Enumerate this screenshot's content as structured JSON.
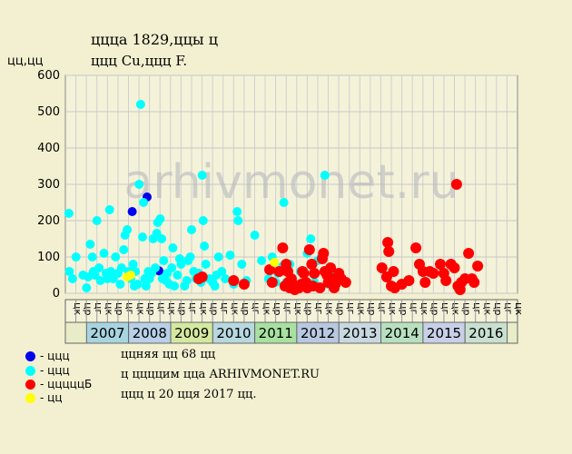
{
  "header": {
    "title_line1": "ццца 1829,ццы ц",
    "title_line2": "ццц Cu,ццц F."
  },
  "watermark": "arhivmonet.ru",
  "legend": [
    {
      "label": "- ццц",
      "color": "#0000ee"
    },
    {
      "label": "- ццц",
      "color": "#00ffff"
    },
    {
      "label": "- цццццБ",
      "color": "#ff0000"
    },
    {
      "label": "- цц",
      "color": "#ffff00"
    }
  ],
  "notes": [
    "ццняя цц 68 цц",
    "ц ццццим цца ARHIVMONET.RU",
    "ццц ц 20 цця 2017 цц."
  ],
  "chart_data": {
    "type": "scatter",
    "ylabel": "цц,цц",
    "ylim": [
      0,
      600
    ],
    "yticks": [
      0,
      100,
      200,
      300,
      400,
      500,
      600
    ],
    "grid": true,
    "x_axis_kind": "date",
    "x_start": "2006-07-01",
    "x_end": "2017-04-01",
    "half_year_labels": [
      "цк",
      "цр",
      "цг",
      "цк",
      "цр",
      "цг",
      "цк",
      "цр",
      "цг",
      "цк",
      "цр",
      "цг",
      "цк",
      "цр",
      "цг",
      "цк",
      "цр",
      "цг",
      "цк",
      "цр",
      "цг",
      "цк",
      "цр",
      "цг",
      "цк",
      "цр",
      "цг",
      "цк",
      "цр",
      "цг",
      "цк",
      "цр",
      "цг",
      "цк",
      "цр",
      "цг",
      "цк",
      "цр",
      "цг",
      "цк",
      "цр",
      "цг",
      "цк"
    ],
    "years": [
      {
        "label": "2007",
        "start": "2007-01-01",
        "end": "2008-01-01",
        "color": "#a8d4e0"
      },
      {
        "label": "2008",
        "start": "2008-01-01",
        "end": "2009-01-01",
        "color": "#b8d0e8"
      },
      {
        "label": "2009",
        "start": "2009-01-01",
        "end": "2010-01-01",
        "color": "#d4e8a0"
      },
      {
        "label": "2010",
        "start": "2010-01-01",
        "end": "2011-01-01",
        "color": "#b8d8e0"
      },
      {
        "label": "2011",
        "start": "2011-01-01",
        "end": "2012-01-01",
        "color": "#a8e0a0"
      },
      {
        "label": "2012",
        "start": "2012-01-01",
        "end": "2013-01-01",
        "color": "#b8c8e0"
      },
      {
        "label": "2013",
        "start": "2013-01-01",
        "end": "2014-01-01",
        "color": "#c8d8e0"
      },
      {
        "label": "2014",
        "start": "2014-01-01",
        "end": "2015-01-01",
        "color": "#b8e0c0"
      },
      {
        "label": "2015",
        "start": "2015-01-01",
        "end": "2016-01-01",
        "color": "#c8d0e8"
      },
      {
        "label": "2016",
        "start": "2016-01-01",
        "end": "2017-01-01",
        "color": "#c8e0d0"
      }
    ],
    "series": [
      {
        "name": "ццц",
        "color": "#0000ee",
        "points": [
          [
            "2008-02-01",
            225
          ],
          [
            "2008-06-10",
            265
          ],
          [
            "2008-09-20",
            62
          ]
        ]
      },
      {
        "name": "ццц",
        "color": "#00ffff",
        "points": [
          [
            "2006-08-01",
            220
          ],
          [
            "2006-08-05",
            60
          ],
          [
            "2006-09-01",
            40
          ],
          [
            "2006-10-01",
            100
          ],
          [
            "2006-12-01",
            50
          ],
          [
            "2007-01-01",
            15
          ],
          [
            "2007-01-15",
            45
          ],
          [
            "2007-02-01",
            135
          ],
          [
            "2007-02-20",
            100
          ],
          [
            "2007-03-01",
            60
          ],
          [
            "2007-03-15",
            50
          ],
          [
            "2007-04-01",
            200
          ],
          [
            "2007-04-20",
            70
          ],
          [
            "2007-05-01",
            35
          ],
          [
            "2007-06-01",
            110
          ],
          [
            "2007-06-20",
            55
          ],
          [
            "2007-07-01",
            40
          ],
          [
            "2007-07-20",
            230
          ],
          [
            "2007-08-01",
            60
          ],
          [
            "2007-08-20",
            40
          ],
          [
            "2007-09-10",
            100
          ],
          [
            "2007-10-01",
            55
          ],
          [
            "2007-10-20",
            25
          ],
          [
            "2007-11-01",
            70
          ],
          [
            "2007-11-20",
            120
          ],
          [
            "2007-12-01",
            160
          ],
          [
            "2007-12-20",
            175
          ],
          [
            "2008-01-01",
            60
          ],
          [
            "2008-01-20",
            40
          ],
          [
            "2008-02-10",
            80
          ],
          [
            "2008-02-20",
            20
          ],
          [
            "2008-03-01",
            60
          ],
          [
            "2008-03-20",
            25
          ],
          [
            "2008-04-01",
            300
          ],
          [
            "2008-04-15",
            520
          ],
          [
            "2008-05-01",
            155
          ],
          [
            "2008-05-10",
            250
          ],
          [
            "2008-05-20",
            40
          ],
          [
            "2008-06-01",
            20
          ],
          [
            "2008-06-20",
            60
          ],
          [
            "2008-07-01",
            40
          ],
          [
            "2008-07-20",
            55
          ],
          [
            "2008-08-01",
            150
          ],
          [
            "2008-08-20",
            70
          ],
          [
            "2008-09-01",
            165
          ],
          [
            "2008-09-10",
            195
          ],
          [
            "2008-10-01",
            205
          ],
          [
            "2008-10-15",
            150
          ],
          [
            "2008-10-20",
            40
          ],
          [
            "2008-11-01",
            90
          ],
          [
            "2008-11-20",
            35
          ],
          [
            "2008-12-01",
            55
          ],
          [
            "2008-12-20",
            25
          ],
          [
            "2009-01-10",
            70
          ],
          [
            "2009-01-20",
            125
          ],
          [
            "2009-02-01",
            20
          ],
          [
            "2009-03-01",
            50
          ],
          [
            "2009-03-20",
            95
          ],
          [
            "2009-04-01",
            80
          ],
          [
            "2009-05-01",
            20
          ],
          [
            "2009-05-20",
            35
          ],
          [
            "2009-06-01",
            90
          ],
          [
            "2009-06-20",
            100
          ],
          [
            "2009-07-01",
            175
          ],
          [
            "2009-07-20",
            60
          ],
          [
            "2009-08-10",
            40
          ],
          [
            "2009-09-01",
            55
          ],
          [
            "2009-09-20",
            30
          ],
          [
            "2009-10-01",
            325
          ],
          [
            "2009-10-10",
            200
          ],
          [
            "2009-10-20",
            130
          ],
          [
            "2009-11-01",
            80
          ],
          [
            "2009-12-01",
            40
          ],
          [
            "2010-01-01",
            30
          ],
          [
            "2010-01-20",
            20
          ],
          [
            "2010-02-01",
            50
          ],
          [
            "2010-02-20",
            100
          ],
          [
            "2010-03-20",
            60
          ],
          [
            "2010-04-20",
            40
          ],
          [
            "2010-06-01",
            105
          ],
          [
            "2010-07-01",
            25
          ],
          [
            "2010-08-01",
            225
          ],
          [
            "2010-08-10",
            200
          ],
          [
            "2010-09-10",
            80
          ],
          [
            "2010-10-20",
            35
          ],
          [
            "2011-01-01",
            160
          ],
          [
            "2011-03-01",
            90
          ],
          [
            "2011-05-01",
            40
          ],
          [
            "2011-06-01",
            100
          ],
          [
            "2011-07-01",
            30
          ],
          [
            "2011-07-20",
            55
          ],
          [
            "2011-09-01",
            75
          ],
          [
            "2011-09-10",
            250
          ],
          [
            "2011-10-01",
            30
          ],
          [
            "2011-11-01",
            80
          ],
          [
            "2012-02-01",
            60
          ],
          [
            "2012-03-01",
            20
          ],
          [
            "2012-04-01",
            110
          ],
          [
            "2012-05-01",
            150
          ],
          [
            "2012-06-01",
            30
          ],
          [
            "2012-07-01",
            90
          ],
          [
            "2012-08-01",
            100
          ],
          [
            "2012-09-01",
            325
          ],
          [
            "2012-10-01",
            25
          ],
          [
            "2012-11-01",
            60
          ]
        ]
      },
      {
        "name": "цццццБ",
        "color": "#ff0000",
        "points": [
          [
            "2009-09-01",
            40
          ],
          [
            "2009-10-01",
            45
          ],
          [
            "2010-07-01",
            35
          ],
          [
            "2010-10-01",
            25
          ],
          [
            "2011-05-10",
            65
          ],
          [
            "2011-06-01",
            30
          ],
          [
            "2011-08-01",
            60
          ],
          [
            "2011-09-01",
            125
          ],
          [
            "2011-09-20",
            20
          ],
          [
            "2011-10-01",
            80
          ],
          [
            "2011-10-15",
            60
          ],
          [
            "2011-10-20",
            30
          ],
          [
            "2011-11-01",
            15
          ],
          [
            "2011-11-15",
            40
          ],
          [
            "2011-12-01",
            20
          ],
          [
            "2011-12-15",
            10
          ],
          [
            "2012-01-01",
            20
          ],
          [
            "2012-01-20",
            15
          ],
          [
            "2012-02-10",
            25
          ],
          [
            "2012-02-20",
            60
          ],
          [
            "2012-03-01",
            55
          ],
          [
            "2012-03-20",
            30
          ],
          [
            "2012-04-01",
            15
          ],
          [
            "2012-04-10",
            20
          ],
          [
            "2012-04-20",
            120
          ],
          [
            "2012-05-10",
            80
          ],
          [
            "2012-05-20",
            20
          ],
          [
            "2012-06-01",
            55
          ],
          [
            "2012-07-20",
            15
          ],
          [
            "2012-08-10",
            95
          ],
          [
            "2012-08-20",
            110
          ],
          [
            "2012-09-01",
            60
          ],
          [
            "2012-09-20",
            50
          ],
          [
            "2012-10-01",
            30
          ],
          [
            "2012-10-20",
            70
          ],
          [
            "2012-11-01",
            40
          ],
          [
            "2012-11-20",
            15
          ],
          [
            "2012-12-01",
            25
          ],
          [
            "2013-01-01",
            55
          ],
          [
            "2013-01-20",
            40
          ],
          [
            "2013-03-01",
            30
          ],
          [
            "2014-01-10",
            70
          ],
          [
            "2014-02-20",
            45
          ],
          [
            "2014-03-01",
            140
          ],
          [
            "2014-03-10",
            115
          ],
          [
            "2014-04-01",
            20
          ],
          [
            "2014-04-20",
            60
          ],
          [
            "2014-05-01",
            15
          ],
          [
            "2014-07-01",
            25
          ],
          [
            "2014-09-01",
            35
          ],
          [
            "2014-11-01",
            125
          ],
          [
            "2014-12-01",
            80
          ],
          [
            "2015-01-01",
            60
          ],
          [
            "2015-01-20",
            30
          ],
          [
            "2015-03-01",
            60
          ],
          [
            "2015-04-01",
            55
          ],
          [
            "2015-06-01",
            80
          ],
          [
            "2015-07-01",
            55
          ],
          [
            "2015-07-20",
            35
          ],
          [
            "2015-09-01",
            80
          ],
          [
            "2015-10-01",
            70
          ],
          [
            "2015-10-20",
            300
          ],
          [
            "2015-11-01",
            20
          ],
          [
            "2015-11-20",
            10
          ],
          [
            "2015-12-01",
            30
          ],
          [
            "2016-01-01",
            40
          ],
          [
            "2016-02-01",
            110
          ],
          [
            "2016-03-01",
            40
          ],
          [
            "2016-03-20",
            30
          ],
          [
            "2016-04-20",
            75
          ]
        ]
      },
      {
        "name": "цц",
        "color": "#ffff00",
        "points": [
          [
            "2007-12-20",
            45
          ],
          [
            "2008-01-20",
            50
          ],
          [
            "2011-06-20",
            85
          ]
        ]
      }
    ]
  }
}
